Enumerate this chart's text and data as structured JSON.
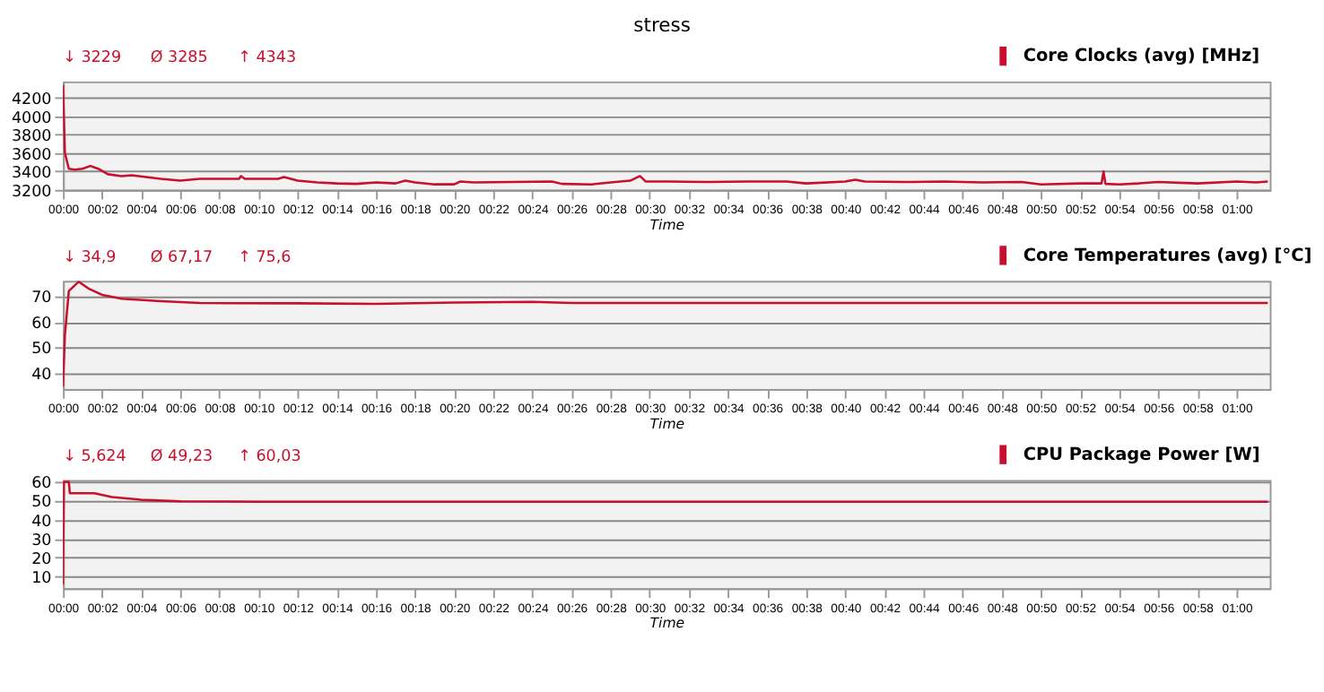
{
  "chart_data": [
    {
      "type": "line",
      "title": "stress",
      "xlabel": "Time",
      "legend": "top right",
      "grid": "y",
      "annotations": [
        "↓ 3229",
        "Ø 3285",
        "↑ 4343"
      ],
      "x": [
        0,
        0.1,
        0.3,
        0.6,
        1,
        1.4,
        1.8,
        2.3,
        3,
        3.5,
        5,
        6,
        7,
        9,
        9.1,
        9.3,
        11,
        11.3,
        12,
        13,
        14,
        15,
        16,
        17,
        17.5,
        18,
        19,
        20,
        20.3,
        21,
        23,
        25,
        25.5,
        27,
        28,
        29,
        29.5,
        29.8,
        31,
        33,
        35,
        37,
        38,
        40,
        40.5,
        41,
        43,
        45,
        47,
        49,
        50,
        52,
        53.1,
        53.2,
        53.3,
        54,
        55,
        56,
        58,
        60,
        61,
        61.6
      ],
      "series": [
        {
          "name": "Core Clocks (avg) [MHz]",
          "color": "#c8102e",
          "values": [
            4343,
            3600,
            3430,
            3420,
            3430,
            3460,
            3430,
            3370,
            3350,
            3360,
            3320,
            3300,
            3320,
            3320,
            3350,
            3320,
            3320,
            3340,
            3300,
            3280,
            3270,
            3265,
            3280,
            3270,
            3300,
            3280,
            3260,
            3260,
            3290,
            3280,
            3285,
            3290,
            3265,
            3260,
            3280,
            3300,
            3350,
            3290,
            3290,
            3285,
            3290,
            3290,
            3270,
            3290,
            3310,
            3290,
            3285,
            3290,
            3280,
            3285,
            3260,
            3270,
            3270,
            3400,
            3265,
            3260,
            3270,
            3285,
            3270,
            3290,
            3280,
            3290
          ]
        }
      ],
      "xlim": [
        0,
        61.7
      ],
      "ylim": [
        3200,
        4380
      ],
      "yticks": [
        3200,
        3400,
        3600,
        3800,
        4000,
        4200
      ],
      "xticks": [
        {
          "value": 0,
          "label": "00:00"
        },
        {
          "value": 2,
          "label": "00:02"
        },
        {
          "value": 4,
          "label": "00:04"
        },
        {
          "value": 6,
          "label": "00:06"
        },
        {
          "value": 8,
          "label": "00:08"
        },
        {
          "value": 10,
          "label": "00:10"
        },
        {
          "value": 12,
          "label": "00:12"
        },
        {
          "value": 14,
          "label": "00:14"
        },
        {
          "value": 16,
          "label": "00:16"
        },
        {
          "value": 18,
          "label": "00:18"
        },
        {
          "value": 20,
          "label": "00:20"
        },
        {
          "value": 22,
          "label": "00:22"
        },
        {
          "value": 24,
          "label": "00:24"
        },
        {
          "value": 26,
          "label": "00:26"
        },
        {
          "value": 28,
          "label": "00:28"
        },
        {
          "value": 30,
          "label": "00:30"
        },
        {
          "value": 32,
          "label": "00:32"
        },
        {
          "value": 34,
          "label": "00:34"
        },
        {
          "value": 36,
          "label": "00:36"
        },
        {
          "value": 38,
          "label": "00:38"
        },
        {
          "value": 40,
          "label": "00:40"
        },
        {
          "value": 42,
          "label": "00:42"
        },
        {
          "value": 44,
          "label": "00:44"
        },
        {
          "value": 46,
          "label": "00:46"
        },
        {
          "value": 48,
          "label": "00:48"
        },
        {
          "value": 50,
          "label": "00:50"
        },
        {
          "value": 52,
          "label": "00:52"
        },
        {
          "value": 54,
          "label": "00:54"
        },
        {
          "value": 56,
          "label": "00:56"
        },
        {
          "value": 58,
          "label": "00:58"
        },
        {
          "value": 60,
          "label": "01:00"
        }
      ]
    },
    {
      "type": "line",
      "xlabel": "Time",
      "legend": "top right",
      "grid": "y",
      "annotations": [
        "↓ 34,9",
        "Ø 67,17",
        "↑ 75,6"
      ],
      "x": [
        0,
        0.1,
        0.3,
        0.8,
        1.3,
        2,
        3,
        5,
        7,
        12,
        16,
        20,
        24,
        26,
        30,
        40,
        50,
        61.6
      ],
      "series": [
        {
          "name": "Core Temperatures (avg) [°C]",
          "color": "#c8102e",
          "values": [
            34.9,
            55,
            72,
            75.6,
            73,
            70.5,
            69,
            68,
            67.3,
            67.2,
            67,
            67.5,
            67.8,
            67.3,
            67.3,
            67.3,
            67.3,
            67.3
          ]
        }
      ],
      "xlim": [
        0,
        61.7
      ],
      "ylim": [
        33.8,
        76
      ],
      "yticks": [
        40,
        50,
        60,
        70
      ],
      "xticks": [
        {
          "value": 0,
          "label": "00:00"
        },
        {
          "value": 2,
          "label": "00:02"
        },
        {
          "value": 4,
          "label": "00:04"
        },
        {
          "value": 6,
          "label": "00:06"
        },
        {
          "value": 8,
          "label": "00:08"
        },
        {
          "value": 10,
          "label": "00:10"
        },
        {
          "value": 12,
          "label": "00:12"
        },
        {
          "value": 14,
          "label": "00:14"
        },
        {
          "value": 16,
          "label": "00:16"
        },
        {
          "value": 18,
          "label": "00:18"
        },
        {
          "value": 20,
          "label": "00:20"
        },
        {
          "value": 22,
          "label": "00:22"
        },
        {
          "value": 24,
          "label": "00:24"
        },
        {
          "value": 26,
          "label": "00:26"
        },
        {
          "value": 28,
          "label": "00:28"
        },
        {
          "value": 30,
          "label": "00:30"
        },
        {
          "value": 32,
          "label": "00:32"
        },
        {
          "value": 34,
          "label": "00:34"
        },
        {
          "value": 36,
          "label": "00:36"
        },
        {
          "value": 38,
          "label": "00:38"
        },
        {
          "value": 40,
          "label": "00:40"
        },
        {
          "value": 42,
          "label": "00:42"
        },
        {
          "value": 44,
          "label": "00:44"
        },
        {
          "value": 46,
          "label": "00:46"
        },
        {
          "value": 48,
          "label": "00:48"
        },
        {
          "value": 50,
          "label": "00:50"
        },
        {
          "value": 52,
          "label": "00:52"
        },
        {
          "value": 54,
          "label": "00:54"
        },
        {
          "value": 56,
          "label": "00:56"
        },
        {
          "value": 58,
          "label": "00:58"
        },
        {
          "value": 60,
          "label": "01:00"
        }
      ]
    },
    {
      "type": "line",
      "xlabel": "Time",
      "legend": "top right",
      "grid": "y",
      "annotations": [
        "↓ 5,624",
        "Ø 49,23",
        "↑ 60,03"
      ],
      "x": [
        0,
        0.05,
        0.3,
        0.35,
        1.6,
        2.5,
        4,
        6,
        10,
        61.6
      ],
      "series": [
        {
          "name": "CPU Package Power [W]",
          "color": "#c8102e",
          "values": [
            5.6,
            60,
            60,
            54,
            54,
            52,
            50.5,
            49.7,
            49.5,
            49.5
          ]
        }
      ],
      "xlim": [
        0,
        61.7
      ],
      "ylim": [
        3.7,
        61
      ],
      "yticks": [
        10,
        20,
        30,
        40,
        50,
        60
      ],
      "xticks": [
        {
          "value": 0,
          "label": "00:00"
        },
        {
          "value": 2,
          "label": "00:02"
        },
        {
          "value": 4,
          "label": "00:04"
        },
        {
          "value": 6,
          "label": "00:06"
        },
        {
          "value": 8,
          "label": "00:08"
        },
        {
          "value": 10,
          "label": "00:10"
        },
        {
          "value": 12,
          "label": "00:12"
        },
        {
          "value": 14,
          "label": "00:14"
        },
        {
          "value": 16,
          "label": "00:16"
        },
        {
          "value": 18,
          "label": "00:18"
        },
        {
          "value": 20,
          "label": "00:20"
        },
        {
          "value": 22,
          "label": "00:22"
        },
        {
          "value": 24,
          "label": "00:24"
        },
        {
          "value": 26,
          "label": "00:26"
        },
        {
          "value": 28,
          "label": "00:28"
        },
        {
          "value": 30,
          "label": "00:30"
        },
        {
          "value": 32,
          "label": "00:32"
        },
        {
          "value": 34,
          "label": "00:34"
        },
        {
          "value": 36,
          "label": "00:36"
        },
        {
          "value": 38,
          "label": "00:38"
        },
        {
          "value": 40,
          "label": "00:40"
        },
        {
          "value": 42,
          "label": "00:42"
        },
        {
          "value": 44,
          "label": "00:44"
        },
        {
          "value": 46,
          "label": "00:46"
        },
        {
          "value": 48,
          "label": "00:48"
        },
        {
          "value": 50,
          "label": "00:50"
        },
        {
          "value": 52,
          "label": "00:52"
        },
        {
          "value": 54,
          "label": "00:54"
        },
        {
          "value": 56,
          "label": "00:56"
        },
        {
          "value": 58,
          "label": "00:58"
        },
        {
          "value": 60,
          "label": "01:00"
        }
      ]
    }
  ]
}
